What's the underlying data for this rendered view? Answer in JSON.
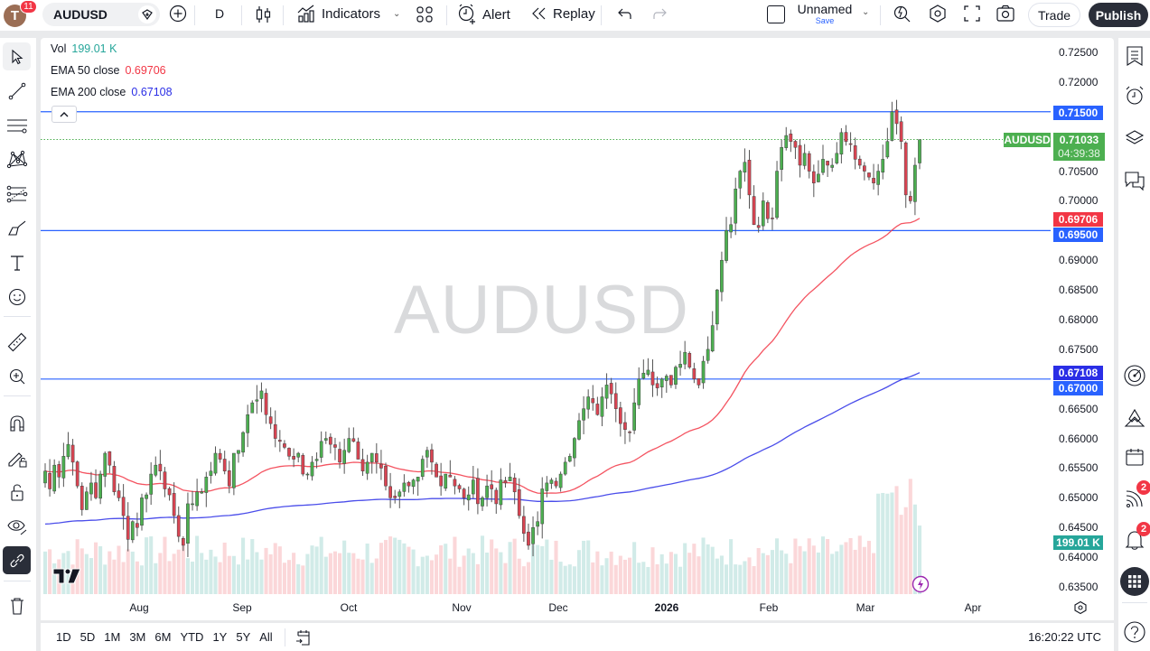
{
  "header": {
    "avatar_letter": "T",
    "avatar_badge": "11",
    "symbol": "AUDUSD",
    "interval": "D",
    "indicators_label": "Indicators",
    "alert_label": "Alert",
    "replay_label": "Replay",
    "layout_name": "Unnamed",
    "layout_save": "Save",
    "trade_label": "Trade",
    "publish_label": "Publish"
  },
  "legend": {
    "vol_label": "Vol",
    "vol_value": "199.01 K",
    "ema50_label": "EMA 50 close",
    "ema50_value": "0.69706",
    "ema200_label": "EMA 200 close",
    "ema200_value": "0.67108"
  },
  "watermark": "AUDUSD",
  "colors": {
    "up": "#4caf50",
    "down": "#d94452",
    "ema50": "#f23645",
    "ema200": "#2a2ee6",
    "hline": "#2962ff",
    "vol_up": "#d1ebe8",
    "vol_down": "#fbd7d9",
    "last_price": "#4caf50",
    "vol_tag": "#26a69a"
  },
  "price_scale": {
    "labels": [
      "0.72500",
      "0.72000",
      "0.70500",
      "0.70000",
      "0.69000",
      "0.68500",
      "0.68000",
      "0.67500",
      "0.66500",
      "0.66000",
      "0.65500",
      "0.65000",
      "0.64500",
      "0.64000",
      "0.63500"
    ],
    "tags": {
      "hline_top": "0.71500",
      "last_symbol": "AUDUSD",
      "last_price": "0.71033",
      "countdown": "04:39:38",
      "ema50": "0.69706",
      "hline_mid": "0.69500",
      "ema200": "0.67108",
      "hline_low": "0.67000",
      "volume": "199.01 K"
    }
  },
  "time_scale": {
    "labels": [
      "Aug",
      "Sep",
      "Oct",
      "Nov",
      "Dec",
      "2026",
      "Feb",
      "Mar",
      "Apr"
    ]
  },
  "bottom_bar": {
    "ranges": [
      "1D",
      "5D",
      "1M",
      "3M",
      "6M",
      "YTD",
      "1Y",
      "5Y",
      "All"
    ],
    "clock": "16:20:22 UTC"
  },
  "right_toolbar": {
    "ideas_badge": "2",
    "alerts_badge": "2"
  },
  "chart_data": {
    "type": "candlestick",
    "title": "AUDUSD, 1D",
    "ylim": [
      0.6335,
      0.7265
    ],
    "horizontal_lines": [
      0.715,
      0.695,
      0.67
    ],
    "last_price": 0.71033,
    "closes": [
      0.6545,
      0.6515,
      0.6555,
      0.6535,
      0.657,
      0.659,
      0.656,
      0.652,
      0.648,
      0.651,
      0.6525,
      0.65,
      0.654,
      0.6575,
      0.6555,
      0.651,
      0.65,
      0.647,
      0.643,
      0.646,
      0.645,
      0.65,
      0.6505,
      0.654,
      0.6555,
      0.6545,
      0.6515,
      0.6505,
      0.647,
      0.6435,
      0.642,
      0.649,
      0.649,
      0.651,
      0.651,
      0.6535,
      0.6545,
      0.6575,
      0.6565,
      0.6545,
      0.652,
      0.6575,
      0.658,
      0.661,
      0.664,
      0.666,
      0.6665,
      0.668,
      0.664,
      0.6625,
      0.66,
      0.6595,
      0.6585,
      0.657,
      0.6565,
      0.6575,
      0.654,
      0.654,
      0.656,
      0.6565,
      0.6595,
      0.66,
      0.659,
      0.6585,
      0.656,
      0.658,
      0.66,
      0.6595,
      0.6565,
      0.6545,
      0.656,
      0.6575,
      0.656,
      0.655,
      0.652,
      0.65,
      0.65,
      0.651,
      0.6525,
      0.652,
      0.653,
      0.6535,
      0.6565,
      0.658,
      0.656,
      0.6535,
      0.652,
      0.654,
      0.6535,
      0.652,
      0.6515,
      0.65,
      0.6505,
      0.653,
      0.649,
      0.65,
      0.652,
      0.6515,
      0.649,
      0.653,
      0.6525,
      0.6535,
      0.651,
      0.647,
      0.644,
      0.642,
      0.645,
      0.646,
      0.6515,
      0.6525,
      0.653,
      0.652,
      0.654,
      0.656,
      0.657,
      0.66,
      0.663,
      0.665,
      0.667,
      0.666,
      0.664,
      0.667,
      0.669,
      0.6675,
      0.665,
      0.6625,
      0.6615,
      0.661,
      0.666,
      0.67,
      0.671,
      0.6715,
      0.669,
      0.6685,
      0.67,
      0.6705,
      0.669,
      0.672,
      0.6725,
      0.6745,
      0.672,
      0.67,
      0.669,
      0.673,
      0.675,
      0.679,
      0.685,
      0.69,
      0.695,
      0.696,
      0.702,
      0.705,
      0.7065,
      0.701,
      0.696,
      0.6955,
      0.7,
      0.697,
      0.697,
      0.705,
      0.709,
      0.711,
      0.71,
      0.709,
      0.706,
      0.708,
      0.705,
      0.703,
      0.7045,
      0.707,
      0.706,
      0.706,
      0.708,
      0.7115,
      0.71,
      0.7095,
      0.707,
      0.706,
      0.705,
      0.704,
      0.703,
      0.705,
      0.707,
      0.71,
      0.715,
      0.713,
      0.71,
      0.701,
      0.7,
      0.706,
      0.7103
    ],
    "ema50_end": 0.69706,
    "ema200_end": 0.67108
  }
}
